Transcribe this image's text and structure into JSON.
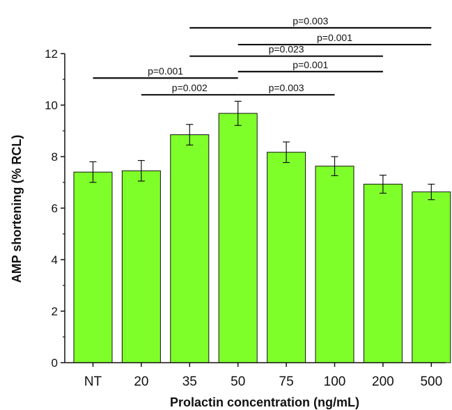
{
  "chart_data": {
    "type": "bar",
    "xlabel": "Prolactin concentration (ng/mL)",
    "ylabel": "AMP shortening (% RCL)",
    "ylim": [
      0,
      12
    ],
    "yticks": [
      0,
      2,
      4,
      6,
      8,
      10,
      12
    ],
    "categories": [
      "NT",
      "20",
      "35",
      "50",
      "75",
      "100",
      "200",
      "500"
    ],
    "values": [
      7.4,
      7.45,
      8.85,
      9.68,
      8.17,
      7.63,
      6.93,
      6.63
    ],
    "errors": [
      0.4,
      0.4,
      0.4,
      0.47,
      0.4,
      0.37,
      0.35,
      0.3
    ],
    "bar_color": "#7FFF2A",
    "comparisons": [
      {
        "from": "NT",
        "to": "50",
        "y": 11.05,
        "label": "p=0.001"
      },
      {
        "from": "20",
        "to": "50",
        "y": 10.4,
        "label": "p=0.002"
      },
      {
        "from": "50",
        "to": "100",
        "y": 10.4,
        "label": "p=0.003"
      },
      {
        "from": "50",
        "to": "200",
        "y": 11.3,
        "label": "p=0.001"
      },
      {
        "from": "35",
        "to": "200",
        "y": 11.9,
        "label": "p=0.023"
      },
      {
        "from": "50",
        "to": "500",
        "y": 12.35,
        "label": "p=0.001"
      },
      {
        "from": "35",
        "to": "500",
        "y": 13.0,
        "label": "p=0.003"
      }
    ]
  }
}
